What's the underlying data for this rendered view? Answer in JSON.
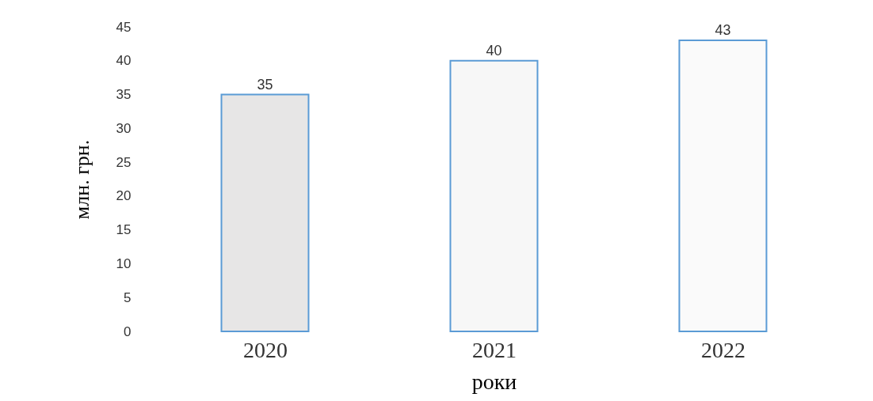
{
  "chart_data": {
    "type": "bar",
    "categories": [
      "2020",
      "2021",
      "2022"
    ],
    "values": [
      35,
      40,
      43
    ],
    "colors": [
      "#e7e6e6",
      "#f7f7f7",
      "#fafafa"
    ],
    "xlabel": "роки",
    "ylabel": "млн. грн.",
    "ylim": [
      0,
      45
    ],
    "yticks": [
      0,
      5,
      10,
      15,
      20,
      25,
      30,
      35,
      40,
      45
    ],
    "data_labels": true,
    "grid": false
  }
}
